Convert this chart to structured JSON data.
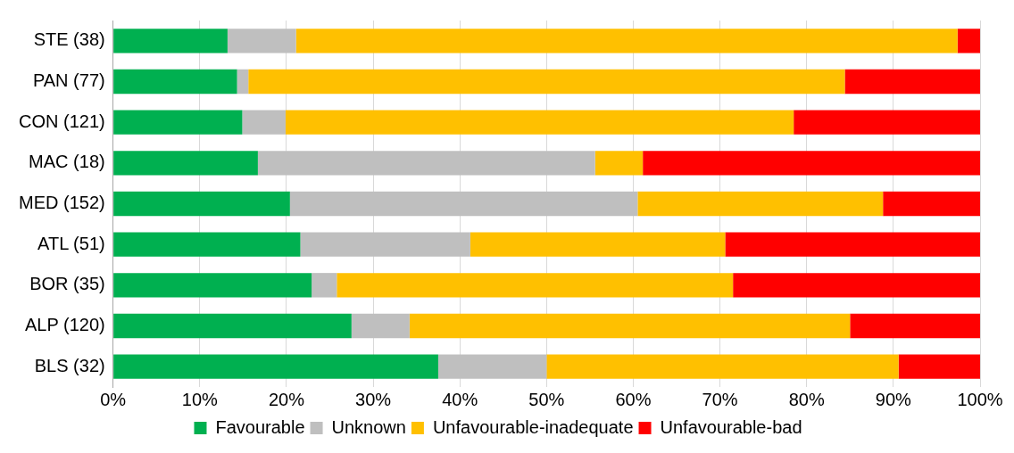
{
  "chart_data": {
    "type": "bar",
    "orientation": "horizontal",
    "stacked": true,
    "categories": [
      "STE (38)",
      "PAN (77)",
      "CON (121)",
      "MAC (18)",
      "MED (152)",
      "ATL (51)",
      "BOR (35)",
      "ALP (120)",
      "BLS (32)"
    ],
    "series": [
      {
        "name": "Favourable",
        "color": "#00b050",
        "values": [
          13.2,
          14.3,
          14.9,
          16.7,
          20.4,
          21.6,
          22.9,
          27.5,
          37.5
        ]
      },
      {
        "name": "Unknown",
        "color": "#bfbfbf",
        "values": [
          7.9,
          1.3,
          5.0,
          38.9,
          40.1,
          19.6,
          2.9,
          6.7,
          12.5
        ]
      },
      {
        "name": "Unfavourable-inadequate",
        "color": "#ffc000",
        "values": [
          76.3,
          68.8,
          58.6,
          5.5,
          28.3,
          29.4,
          45.7,
          50.8,
          40.6
        ]
      },
      {
        "name": "Unfavourable-bad",
        "color": "#ff0000",
        "values": [
          2.6,
          15.6,
          21.5,
          38.9,
          11.2,
          29.4,
          28.5,
          15.0,
          9.4
        ]
      }
    ],
    "xlim": [
      0,
      100
    ],
    "xticks": [
      {
        "value": 0,
        "label": "0%"
      },
      {
        "value": 10,
        "label": "10%"
      },
      {
        "value": 20,
        "label": "20%"
      },
      {
        "value": 30,
        "label": "30%"
      },
      {
        "value": 40,
        "label": "40%"
      },
      {
        "value": 50,
        "label": "50%"
      },
      {
        "value": 60,
        "label": "60%"
      },
      {
        "value": 70,
        "label": "70%"
      },
      {
        "value": 80,
        "label": "80%"
      },
      {
        "value": 90,
        "label": "90%"
      },
      {
        "value": 100,
        "label": "100%"
      }
    ],
    "grid": "x",
    "legend": "bottom"
  }
}
